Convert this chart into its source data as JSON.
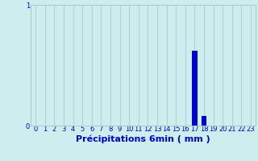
{
  "hours": [
    0,
    1,
    2,
    3,
    4,
    5,
    6,
    7,
    8,
    9,
    10,
    11,
    12,
    13,
    14,
    15,
    16,
    17,
    18,
    19,
    20,
    21,
    22,
    23
  ],
  "values": [
    0,
    0,
    0,
    0,
    0,
    0,
    0,
    0,
    0,
    0,
    0,
    0,
    0,
    0,
    0,
    0,
    0,
    0.62,
    0.08,
    0,
    0,
    0,
    0,
    0
  ],
  "bar_color": "#0000cc",
  "bg_color": "#cceeee",
  "grid_color": "#aacccc",
  "xlabel": "Précipitations 6min ( mm )",
  "ylim": [
    0,
    1.0
  ],
  "yticks": [
    0,
    1
  ],
  "ytick_labels": [
    "0",
    "1"
  ],
  "xtick_labels": [
    "0",
    "1",
    "2",
    "3",
    "4",
    "5",
    "6",
    "7",
    "8",
    "9",
    "10",
    "11",
    "12",
    "13",
    "14",
    "15",
    "16",
    "17",
    "18",
    "19",
    "20",
    "21",
    "22",
    "23"
  ],
  "tick_color": "#0000cc",
  "xlabel_color": "#0000cc",
  "xlabel_fontsize": 8,
  "tick_fontsize": 6,
  "bar_width": 0.6
}
